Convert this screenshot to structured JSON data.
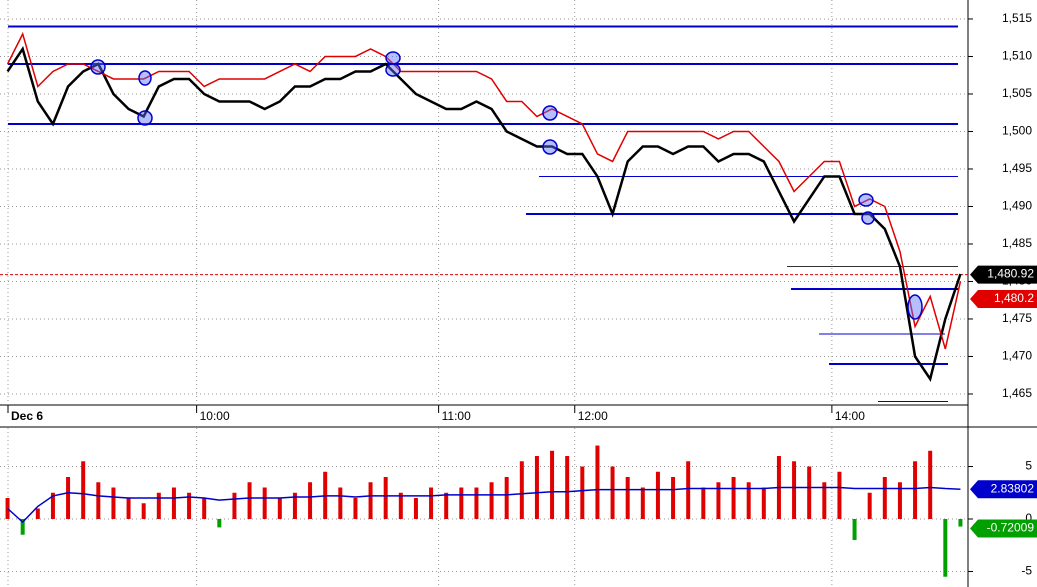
{
  "chart_data": [
    {
      "type": "line",
      "categories": [
        "Dec 6",
        null,
        null,
        null,
        null,
        null,
        null,
        null,
        null,
        null,
        null,
        null,
        null,
        "10:00",
        null,
        null,
        null,
        null,
        null,
        null,
        null,
        null,
        null,
        null,
        null,
        null,
        null,
        null,
        null,
        "11:00",
        null,
        null,
        null,
        null,
        null,
        null,
        null,
        null,
        "12:00",
        null,
        null,
        null,
        null,
        null,
        null,
        null,
        null,
        null,
        null,
        null,
        null,
        null,
        null,
        null,
        null,
        "14:00",
        null,
        null,
        null,
        null,
        null,
        null,
        null,
        null
      ],
      "series": [
        {
          "color": "#000000",
          "values": [
            1508,
            1511,
            1504,
            1501,
            1506,
            1508,
            1509,
            1505,
            1503,
            1502,
            1506,
            1507,
            1507,
            1505,
            1504,
            1504,
            1504,
            1503,
            1504,
            1506,
            1506,
            1507,
            1507,
            1508,
            1508,
            1509,
            1507,
            1505,
            1504,
            1503,
            1503,
            1504,
            1503,
            1500,
            1499,
            1498,
            1498,
            1497,
            1497,
            1494,
            1489,
            1496,
            1498,
            1498,
            1497,
            1498,
            1498,
            1496,
            1497,
            1497,
            1496,
            1492,
            1488,
            1491,
            1494,
            1494,
            1489,
            1489,
            1487,
            1482,
            1470,
            1467,
            1475,
            1481
          ]
        },
        {
          "color": "#e00000",
          "values": [
            1509,
            1513,
            1506,
            1508,
            1509,
            1509,
            1508,
            1507,
            1507,
            1507,
            1508,
            1508,
            1508,
            1506,
            1507,
            1507,
            1507,
            1507,
            1508,
            1509,
            1508,
            1510,
            1510,
            1510,
            1511,
            1510,
            1508,
            1508,
            1508,
            1508,
            1508,
            1508,
            1507,
            1504,
            1504,
            1502,
            1503,
            1502,
            1501,
            1497,
            1496,
            1500,
            1500,
            1500,
            1500,
            1500,
            1500,
            1499,
            1500,
            1500,
            1498,
            1496,
            1492,
            1494,
            1496,
            1496,
            1490,
            1491,
            1490,
            1484,
            1474,
            1478,
            1471,
            1480
          ]
        }
      ],
      "levels": [
        1514,
        1509,
        1501,
        1494,
        1489,
        1482,
        1479,
        1473,
        1469,
        1464
      ],
      "last_price": {
        "value": 1480.92,
        "label": "1,480.92"
      },
      "last_ma": {
        "value": 1480.2,
        "label": "1,480.2"
      },
      "ylim": [
        1463.53,
        1517.53
      ],
      "yticks": [
        {
          "value": 1465,
          "label": "1,465"
        },
        {
          "value": 1470,
          "label": "1,470"
        },
        {
          "value": 1475,
          "label": "1,475"
        },
        {
          "value": 1480,
          "label": "1,480"
        },
        {
          "value": 1485,
          "label": "1,485"
        },
        {
          "value": 1490,
          "label": "1,490"
        },
        {
          "value": 1495,
          "label": "1,495"
        },
        {
          "value": 1500,
          "label": "1,500"
        },
        {
          "value": 1505,
          "label": "1,505"
        },
        {
          "value": 1510,
          "label": "1,510"
        },
        {
          "value": 1515,
          "label": "1,515"
        }
      ],
      "grid": true
    },
    {
      "type": "bar",
      "values": [
        2,
        -1.5,
        1,
        2.5,
        4,
        5.5,
        3.5,
        3,
        2,
        1.5,
        2.5,
        3,
        2.5,
        2,
        -0.8,
        2.5,
        3.5,
        3,
        2,
        2.5,
        3.5,
        4.5,
        3,
        2,
        3.5,
        4,
        2.5,
        2,
        3,
        2.5,
        3,
        3,
        3.5,
        4,
        5.5,
        6,
        6.5,
        6,
        5,
        7,
        5,
        4,
        3,
        4.5,
        4,
        5.5,
        3,
        3.5,
        4,
        3.5,
        3,
        6,
        5.5,
        5,
        3.5,
        4.5,
        -2,
        2.5,
        4,
        3.5,
        5.5,
        6.5,
        -5.5,
        -0.72009
      ],
      "color": "#e00000",
      "negative_color": "#00a000",
      "average": {
        "color": "#0000cc",
        "values": [
          1,
          -0.3,
          1.2,
          2.2,
          2.5,
          2.4,
          2.2,
          2.1,
          2,
          2,
          2,
          2,
          2.1,
          2,
          1.8,
          1.9,
          2,
          2,
          2,
          2.1,
          2.1,
          2.2,
          2.2,
          2.1,
          2.2,
          2.2,
          2.2,
          2.2,
          2.2,
          2.3,
          2.3,
          2.3,
          2.3,
          2.3,
          2.4,
          2.5,
          2.6,
          2.6,
          2.7,
          2.8,
          2.8,
          2.8,
          2.8,
          2.8,
          2.8,
          2.9,
          2.9,
          2.9,
          2.9,
          2.9,
          2.9,
          3,
          3,
          3,
          3,
          3,
          2.9,
          2.9,
          2.9,
          2.9,
          2.9,
          3,
          2.9,
          2.83802
        ]
      },
      "last_average": {
        "value": 2.83802,
        "label": "2.83802"
      },
      "last_value": {
        "value": -0.72009,
        "label": "-0.72009"
      },
      "ylim": [
        -6.48,
        8.67
      ],
      "yticks": [
        -5,
        0,
        5
      ],
      "grid": true
    }
  ]
}
